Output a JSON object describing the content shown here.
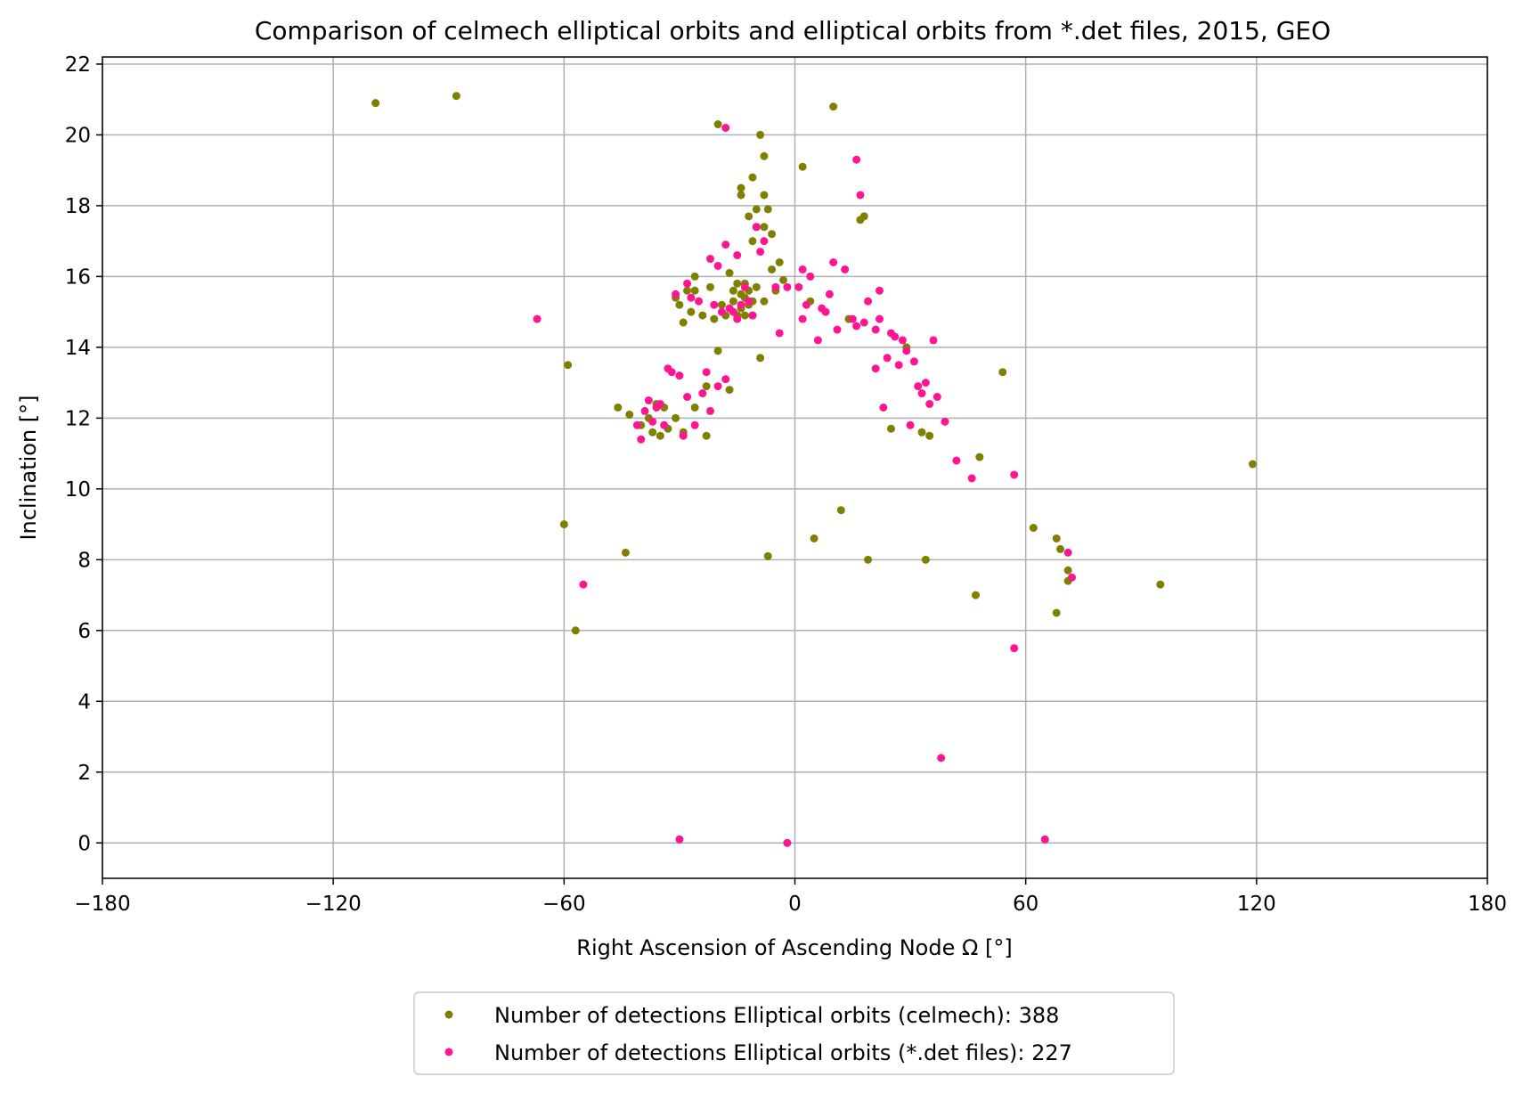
{
  "chart_data": {
    "type": "scatter",
    "title": "Comparison of celmech elliptical orbits and elliptical orbits from *.det files, 2015, GEO",
    "xlabel": "Right Ascension of Ascending Node Ω [°]",
    "ylabel": "Inclination [°]",
    "xlim": [
      -180,
      180
    ],
    "ylim": [
      -1,
      22.2
    ],
    "xticks": [
      -180,
      -120,
      -60,
      0,
      60,
      120,
      180
    ],
    "xtick_labels": [
      "−180",
      "−120",
      "−60",
      "0",
      "60",
      "120",
      "180"
    ],
    "yticks": [
      0,
      2,
      4,
      6,
      8,
      10,
      12,
      14,
      16,
      18,
      20,
      22
    ],
    "ytick_labels": [
      "0",
      "2",
      "4",
      "6",
      "8",
      "10",
      "12",
      "14",
      "16",
      "18",
      "20",
      "22"
    ],
    "grid": true,
    "legend_position": "below the axes, centered",
    "series": [
      {
        "name": "Number of detections Elliptical orbits (celmech): 388",
        "color": "#808000",
        "points": [
          [
            -109,
            20.9
          ],
          [
            -88,
            21.1
          ],
          [
            -60,
            9.0
          ],
          [
            -59,
            13.5
          ],
          [
            -57,
            6.0
          ],
          [
            -46,
            12.3
          ],
          [
            -44,
            8.2
          ],
          [
            -43,
            12.1
          ],
          [
            -40,
            11.8
          ],
          [
            -38,
            12.0
          ],
          [
            -37,
            11.6
          ],
          [
            -36,
            12.4
          ],
          [
            -35,
            11.5
          ],
          [
            -34,
            12.3
          ],
          [
            -33,
            11.7
          ],
          [
            -31,
            12.0
          ],
          [
            -31,
            15.4
          ],
          [
            -30,
            15.2
          ],
          [
            -29,
            14.7
          ],
          [
            -29,
            11.6
          ],
          [
            -28,
            15.6
          ],
          [
            -27,
            15.0
          ],
          [
            -26,
            15.6
          ],
          [
            -26,
            12.3
          ],
          [
            -26,
            16.0
          ],
          [
            -24,
            14.9
          ],
          [
            -23,
            12.9
          ],
          [
            -23,
            11.5
          ],
          [
            -22,
            15.7
          ],
          [
            -21,
            14.8
          ],
          [
            -20,
            13.9
          ],
          [
            -20,
            20.3
          ],
          [
            -19,
            15.2
          ],
          [
            -18,
            14.9
          ],
          [
            -17,
            16.1
          ],
          [
            -17,
            12.8
          ],
          [
            -16,
            15.6
          ],
          [
            -16,
            15.3
          ],
          [
            -15,
            14.9
          ],
          [
            -15,
            15.8
          ],
          [
            -14,
            18.5
          ],
          [
            -14,
            18.3
          ],
          [
            -14,
            15.5
          ],
          [
            -14,
            15.1
          ],
          [
            -13,
            15.8
          ],
          [
            -13,
            14.9
          ],
          [
            -13,
            15.4
          ],
          [
            -12,
            15.6
          ],
          [
            -12,
            15.2
          ],
          [
            -12,
            17.7
          ],
          [
            -11,
            18.8
          ],
          [
            -11,
            17.0
          ],
          [
            -11,
            14.9
          ],
          [
            -11,
            15.3
          ],
          [
            -10,
            17.9
          ],
          [
            -10,
            15.7
          ],
          [
            -10,
            17.4
          ],
          [
            -9,
            20.0
          ],
          [
            -9,
            13.7
          ],
          [
            -8,
            18.3
          ],
          [
            -8,
            19.4
          ],
          [
            -8,
            15.3
          ],
          [
            -8,
            17.4
          ],
          [
            -7,
            8.1
          ],
          [
            -7,
            17.9
          ],
          [
            -6,
            17.2
          ],
          [
            -6,
            16.2
          ],
          [
            -5,
            15.6
          ],
          [
            -4,
            16.4
          ],
          [
            -3,
            15.9
          ],
          [
            2,
            19.1
          ],
          [
            4,
            15.3
          ],
          [
            5,
            8.6
          ],
          [
            10,
            20.8
          ],
          [
            12,
            9.4
          ],
          [
            14,
            14.8
          ],
          [
            17,
            17.6
          ],
          [
            18,
            17.7
          ],
          [
            19,
            8.0
          ],
          [
            25,
            11.7
          ],
          [
            29,
            14.0
          ],
          [
            33,
            11.6
          ],
          [
            34,
            8.0
          ],
          [
            35,
            11.5
          ],
          [
            47,
            7.0
          ],
          [
            48,
            10.9
          ],
          [
            54,
            13.3
          ],
          [
            62,
            8.9
          ],
          [
            68,
            6.5
          ],
          [
            68,
            8.6
          ],
          [
            69,
            8.3
          ],
          [
            71,
            7.7
          ],
          [
            71,
            7.4
          ],
          [
            95,
            7.3
          ],
          [
            119,
            10.7
          ]
        ]
      },
      {
        "name": "Number of detections Elliptical orbits (*.det files): 227",
        "color": "#ff1493",
        "points": [
          [
            -67,
            14.8
          ],
          [
            -55,
            7.3
          ],
          [
            -41,
            11.8
          ],
          [
            -40,
            11.4
          ],
          [
            -39,
            12.2
          ],
          [
            -38,
            12.5
          ],
          [
            -37,
            11.9
          ],
          [
            -36,
            12.3
          ],
          [
            -35,
            12.4
          ],
          [
            -34,
            11.8
          ],
          [
            -33,
            13.4
          ],
          [
            -32,
            13.3
          ],
          [
            -31,
            15.5
          ],
          [
            -30,
            0.1
          ],
          [
            -30,
            13.2
          ],
          [
            -29,
            11.5
          ],
          [
            -28,
            12.6
          ],
          [
            -28,
            15.8
          ],
          [
            -27,
            15.4
          ],
          [
            -26,
            11.8
          ],
          [
            -25,
            15.3
          ],
          [
            -24,
            12.7
          ],
          [
            -23,
            13.3
          ],
          [
            -22,
            16.5
          ],
          [
            -22,
            12.2
          ],
          [
            -21,
            15.2
          ],
          [
            -20,
            16.3
          ],
          [
            -20,
            12.9
          ],
          [
            -19,
            15.0
          ],
          [
            -18,
            16.9
          ],
          [
            -18,
            13.1
          ],
          [
            -18,
            20.2
          ],
          [
            -17,
            15.1
          ],
          [
            -16,
            15.0
          ],
          [
            -15,
            16.6
          ],
          [
            -15,
            14.8
          ],
          [
            -14,
            15.2
          ],
          [
            -13,
            15.7
          ],
          [
            -12,
            15.3
          ],
          [
            -11,
            14.9
          ],
          [
            -10,
            17.4
          ],
          [
            -9,
            16.7
          ],
          [
            -8,
            17.0
          ],
          [
            -5,
            15.7
          ],
          [
            -4,
            14.4
          ],
          [
            -2,
            15.7
          ],
          [
            -2,
            0.0
          ],
          [
            1,
            15.7
          ],
          [
            2,
            14.8
          ],
          [
            2,
            16.2
          ],
          [
            3,
            15.2
          ],
          [
            4,
            16.0
          ],
          [
            6,
            14.2
          ],
          [
            7,
            15.1
          ],
          [
            8,
            15.0
          ],
          [
            9,
            15.5
          ],
          [
            10,
            16.4
          ],
          [
            11,
            14.5
          ],
          [
            13,
            16.2
          ],
          [
            15,
            14.8
          ],
          [
            16,
            19.3
          ],
          [
            16,
            14.6
          ],
          [
            17,
            18.3
          ],
          [
            18,
            14.7
          ],
          [
            19,
            15.3
          ],
          [
            21,
            14.5
          ],
          [
            21,
            13.4
          ],
          [
            22,
            15.6
          ],
          [
            22,
            14.8
          ],
          [
            23,
            12.3
          ],
          [
            24,
            13.7
          ],
          [
            25,
            14.4
          ],
          [
            26,
            14.3
          ],
          [
            27,
            13.5
          ],
          [
            28,
            14.2
          ],
          [
            29,
            13.9
          ],
          [
            30,
            11.8
          ],
          [
            31,
            13.6
          ],
          [
            32,
            12.9
          ],
          [
            33,
            12.7
          ],
          [
            34,
            13.0
          ],
          [
            35,
            12.4
          ],
          [
            36,
            14.2
          ],
          [
            37,
            12.6
          ],
          [
            38,
            2.4
          ],
          [
            39,
            11.9
          ],
          [
            42,
            10.8
          ],
          [
            46,
            10.3
          ],
          [
            57,
            10.4
          ],
          [
            57,
            5.5
          ],
          [
            65,
            0.1
          ],
          [
            71,
            8.2
          ],
          [
            72,
            7.5
          ]
        ]
      }
    ]
  }
}
